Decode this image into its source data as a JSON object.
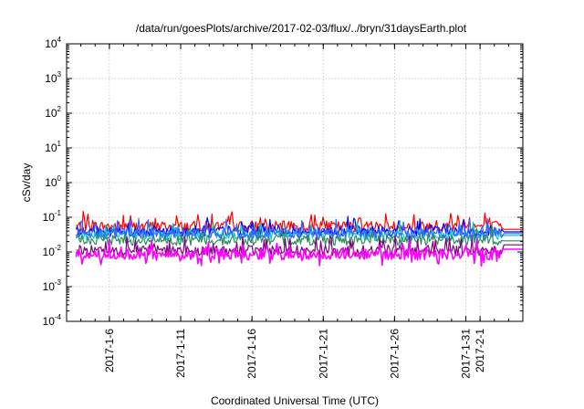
{
  "chart_data": {
    "type": "line",
    "title": "/data/run/goesPlots/archive/2017-02-03/flux/../bryn/31daysEarth.plot",
    "xlabel": "Coordinated Universal Time (UTC)",
    "ylabel": "cSv/day",
    "y_scale": "log",
    "ylim": [
      0.0001,
      10000
    ],
    "y_ticks": [
      {
        "base": "10",
        "exp": "-4"
      },
      {
        "base": "10",
        "exp": "-3"
      },
      {
        "base": "10",
        "exp": "-2"
      },
      {
        "base": "10",
        "exp": "-1"
      },
      {
        "base": "10",
        "exp": "0"
      },
      {
        "base": "10",
        "exp": "1"
      },
      {
        "base": "10",
        "exp": "2"
      },
      {
        "base": "10",
        "exp": "3"
      },
      {
        "base": "10",
        "exp": "4"
      }
    ],
    "xlim": [
      "2017-01-03",
      "2017-02-04"
    ],
    "x_ticks": [
      "2017-1-6",
      "2017-1-11",
      "2017-1-16",
      "2017-1-21",
      "2017-1-26",
      "2017-1-31",
      "2017-2-1"
    ],
    "x_tick_dates": [
      "2017-01-06",
      "2017-01-11",
      "2017-01-16",
      "2017-01-21",
      "2017-01-26",
      "2017-01-31",
      "2017-02-01"
    ],
    "grid": true,
    "series": [
      {
        "color": "#ff0000",
        "level": 0.055,
        "end_level": 0.045
      },
      {
        "color": "#0000ff",
        "level": 0.04,
        "end_level": 0.038
      },
      {
        "color": "#00cccc",
        "level": 0.03,
        "end_level": 0.03
      },
      {
        "color": "#2e8b57",
        "level": 0.022,
        "end_level": 0.021
      },
      {
        "color": "#3366ff",
        "level": 0.035,
        "end_level": 0.034
      },
      {
        "color": "#800080",
        "level": 0.011,
        "end_level": 0.016
      },
      {
        "color": "#ff00ff",
        "level": 0.0085,
        "end_level": 0.012
      }
    ]
  }
}
